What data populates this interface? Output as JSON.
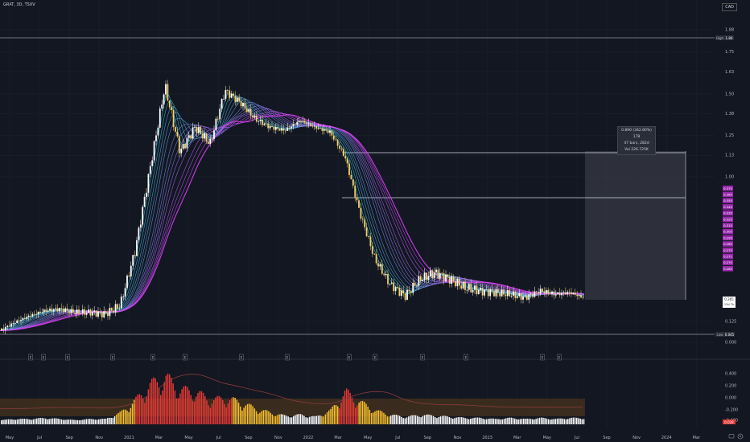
{
  "header": {
    "symbol": "GRAT, 3D, TSXV",
    "currency": "CAD"
  },
  "colors": {
    "background": "#131722",
    "up_candle": "#ffffff",
    "down_candle": "#f2d16b",
    "ribbon_fast": "#26c6da",
    "ribbon_slow": "#e040fb",
    "volume_high": "#e53935",
    "volume_mid": "#fbc02d",
    "volume_low": "#ffffff",
    "price_label_bg": "#9c27b0"
  },
  "price_axis": {
    "ticks": [
      "1.88",
      "1.75",
      "1.63",
      "1.50",
      "1.38",
      "1.25",
      "1.13",
      "1.00",
      "0.125",
      "0.000"
    ]
  },
  "markers": {
    "high_label": "High",
    "high_value": "1.84",
    "low_label": "Low",
    "low_value": "0.045"
  },
  "ribbon_labels": [
    "0.375",
    "0.365",
    "0.355",
    "0.345",
    "0.335",
    "0.325",
    "0.315",
    "0.305",
    "0.295",
    "0.285",
    "0.275",
    "0.271",
    "0.270",
    "0.265"
  ],
  "last_price": {
    "value": "0.265",
    "sub": "13d 7h"
  },
  "measure": {
    "line1": "0.890 (342.80%) 178",
    "line2": "47 bars, 282d",
    "line3": "Vol 226.725K"
  },
  "event_flag": "E",
  "indicator_axis": {
    "ticks": [
      "0.400",
      "0.200",
      "0.000",
      "-0.200",
      "-0.400"
    ],
    "last_value": "0.028"
  },
  "time_axis": [
    "May",
    "Jul",
    "Sep",
    "Nov",
    "2021",
    "Mar",
    "May",
    "Jul",
    "Sep",
    "Nov",
    "2022",
    "Mar",
    "May",
    "Jul",
    "Sep",
    "Nov",
    "2023",
    "Mar",
    "May",
    "Jul",
    "Sep",
    "Nov",
    "2024",
    "Mar"
  ],
  "chart_data": {
    "type": "candlestick",
    "x": [
      "2020-04",
      "2020-05",
      "2020-06",
      "2020-07",
      "2020-08",
      "2020-09",
      "2020-10",
      "2020-11",
      "2020-12",
      "2021-01",
      "2021-02",
      "2021-03",
      "2021-04",
      "2021-05",
      "2021-06",
      "2021-07",
      "2021-08",
      "2021-09",
      "2021-10",
      "2021-11",
      "2021-12",
      "2022-01",
      "2022-02",
      "2022-03",
      "2022-04",
      "2022-05",
      "2022-06",
      "2022-07",
      "2022-08",
      "2022-09",
      "2022-10",
      "2022-11",
      "2022-12",
      "2023-01",
      "2023-02",
      "2023-03",
      "2023-04",
      "2023-05",
      "2023-06",
      "2023-07"
    ],
    "close": [
      0.07,
      0.12,
      0.16,
      0.19,
      0.2,
      0.18,
      0.18,
      0.17,
      0.22,
      0.55,
      1.05,
      1.55,
      1.15,
      1.3,
      1.2,
      1.52,
      1.45,
      1.35,
      1.3,
      1.28,
      1.34,
      1.3,
      1.27,
      1.12,
      0.78,
      0.5,
      0.35,
      0.28,
      0.38,
      0.42,
      0.38,
      0.33,
      0.31,
      0.3,
      0.29,
      0.27,
      0.31,
      0.29,
      0.3,
      0.265
    ],
    "high": 1.84,
    "low": 0.045,
    "measure": {
      "change": 0.89,
      "percent": 342.8,
      "bars": 47,
      "days": 282,
      "volume": "226.725K"
    },
    "volume_indicator": {
      "values": [
        0.01,
        0.02,
        0.02,
        0.03,
        0.02,
        0.01,
        0.02,
        0.02,
        0.08,
        0.2,
        0.35,
        0.42,
        0.3,
        0.28,
        0.2,
        0.22,
        0.18,
        0.12,
        0.08,
        0.05,
        0.06,
        0.04,
        0.1,
        0.28,
        0.18,
        0.1,
        0.06,
        0.04,
        0.06,
        0.05,
        0.04,
        0.03,
        0.03,
        0.02,
        0.03,
        0.02,
        0.03,
        0.02,
        0.03,
        0.028
      ],
      "ylim": [
        -0.4,
        0.4
      ]
    }
  }
}
